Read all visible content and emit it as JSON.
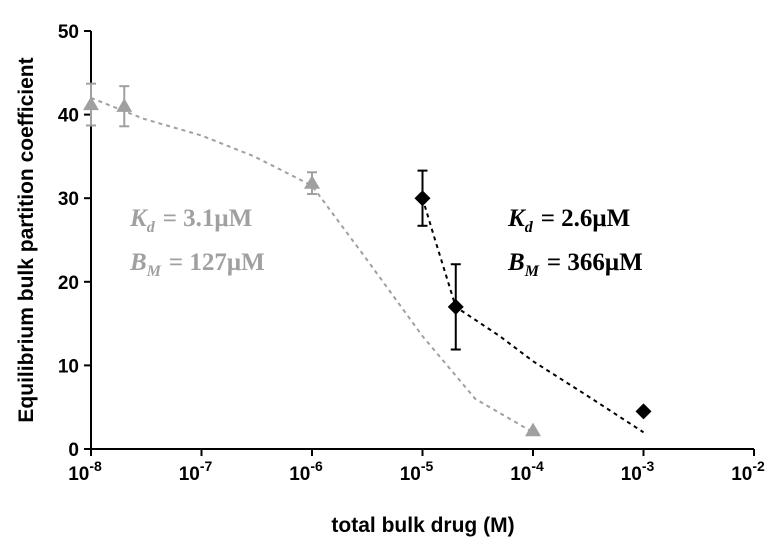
{
  "chart_data": {
    "type": "scatter",
    "xscale": "log",
    "xlim": [
      1e-08,
      0.01
    ],
    "ylim": [
      0,
      50
    ],
    "xlabel": "total bulk drug (M)",
    "ylabel": "Equilibrium bulk partition coefficient",
    "yticks": [
      "0",
      "10",
      "20",
      "30",
      "40",
      "50"
    ],
    "xticks": [
      {
        "base": "10",
        "exp": "-8"
      },
      {
        "base": "10",
        "exp": "-7"
      },
      {
        "base": "10",
        "exp": "-6"
      },
      {
        "base": "10",
        "exp": "-5"
      },
      {
        "base": "10",
        "exp": "-4"
      },
      {
        "base": "10",
        "exp": "-3"
      },
      {
        "base": "10",
        "exp": "-2"
      }
    ],
    "grid": false,
    "series": [
      {
        "color": "#a0a0a0",
        "marker": "triangle",
        "points": [
          {
            "x": 1e-08,
            "y": 41.2,
            "err": 2.5
          },
          {
            "x": 2e-08,
            "y": 41.0,
            "err": 2.4
          },
          {
            "x": 1e-06,
            "y": 31.8,
            "err": 1.3
          },
          {
            "x": 0.0001,
            "y": 2.2,
            "err": 0
          }
        ],
        "fit": [
          [
            1e-08,
            42.0
          ],
          [
            3e-08,
            39.5
          ],
          [
            1e-07,
            37.5
          ],
          [
            3e-07,
            35.0
          ],
          [
            1e-06,
            31.5
          ],
          [
            3e-06,
            23.0
          ],
          [
            1e-05,
            13.5
          ],
          [
            3e-05,
            6.0
          ],
          [
            0.0001,
            2.0
          ]
        ],
        "annotation": {
          "line1": {
            "sym": "K",
            "sub": "d",
            "val": "= 3.1μM"
          },
          "line2": {
            "sym": "B",
            "sub": "M",
            "val": "= 127μM"
          }
        }
      },
      {
        "color": "#000000",
        "marker": "diamond",
        "points": [
          {
            "x": 1e-05,
            "y": 30.0,
            "err": 3.3
          },
          {
            "x": 2e-05,
            "y": 17.0,
            "err": 5.1
          },
          {
            "x": 0.001,
            "y": 4.5,
            "err": 0
          }
        ],
        "fit": [
          [
            1e-05,
            30.0
          ],
          [
            1.3e-05,
            25.0
          ],
          [
            2e-05,
            17.0
          ],
          [
            5e-05,
            13.5
          ],
          [
            0.0001,
            10.5
          ],
          [
            0.0003,
            6.5
          ],
          [
            0.001,
            2.0
          ]
        ],
        "annotation": {
          "line1": {
            "sym": "K",
            "sub": "d",
            "val": "= 2.6μM"
          },
          "line2": {
            "sym": "B",
            "sub": "M",
            "val": "= 366μM"
          }
        }
      }
    ]
  }
}
